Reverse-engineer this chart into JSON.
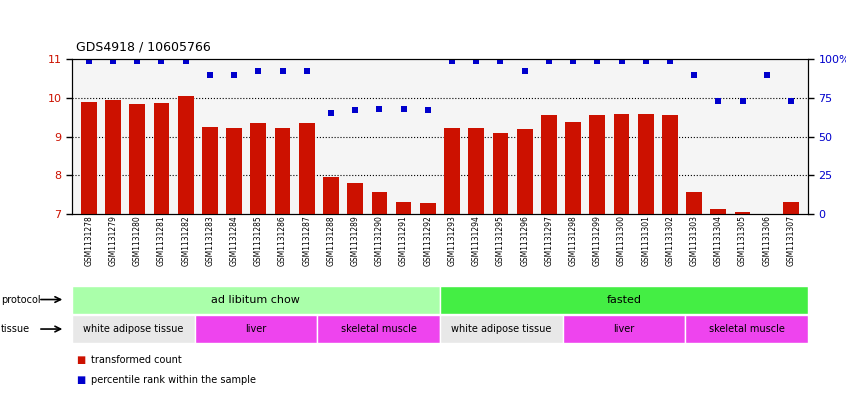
{
  "title": "GDS4918 / 10605766",
  "samples": [
    "GSM1131278",
    "GSM1131279",
    "GSM1131280",
    "GSM1131281",
    "GSM1131282",
    "GSM1131283",
    "GSM1131284",
    "GSM1131285",
    "GSM1131286",
    "GSM1131287",
    "GSM1131288",
    "GSM1131289",
    "GSM1131290",
    "GSM1131291",
    "GSM1131292",
    "GSM1131293",
    "GSM1131294",
    "GSM1131295",
    "GSM1131296",
    "GSM1131297",
    "GSM1131298",
    "GSM1131299",
    "GSM1131300",
    "GSM1131301",
    "GSM1131302",
    "GSM1131303",
    "GSM1131304",
    "GSM1131305",
    "GSM1131306",
    "GSM1131307"
  ],
  "bar_values": [
    9.88,
    9.95,
    9.83,
    9.87,
    10.05,
    9.25,
    9.22,
    9.35,
    9.22,
    9.35,
    7.95,
    7.8,
    7.58,
    7.32,
    7.28,
    9.22,
    9.22,
    9.1,
    9.2,
    9.55,
    9.38,
    9.55,
    9.57,
    9.57,
    9.55,
    7.58,
    7.12,
    7.05,
    7.0,
    7.32
  ],
  "percentile_values": [
    99,
    99,
    99,
    99,
    99,
    90,
    90,
    92,
    92,
    92,
    65,
    67,
    68,
    68,
    67,
    99,
    99,
    99,
    92,
    99,
    99,
    99,
    99,
    99,
    99,
    90,
    73,
    73,
    90,
    73
  ],
  "bar_color": "#cc1100",
  "percentile_color": "#0000cc",
  "ylim_left": [
    7,
    11
  ],
  "ylim_right": [
    0,
    100
  ],
  "yticks_left": [
    7,
    8,
    9,
    10,
    11
  ],
  "yticks_right": [
    0,
    25,
    50,
    75,
    100
  ],
  "ytick_labels_right": [
    "0",
    "25",
    "50",
    "75",
    "100%"
  ],
  "protocol_groups": [
    {
      "label": "ad libitum chow",
      "start": 0,
      "end": 14,
      "color": "#aaffaa"
    },
    {
      "label": "fasted",
      "start": 15,
      "end": 29,
      "color": "#44ee44"
    }
  ],
  "tissue_groups": [
    {
      "label": "white adipose tissue",
      "start": 0,
      "end": 4,
      "color": "#e8e8e8"
    },
    {
      "label": "liver",
      "start": 5,
      "end": 9,
      "color": "#ee66ee"
    },
    {
      "label": "skeletal muscle",
      "start": 10,
      "end": 14,
      "color": "#ee66ee"
    },
    {
      "label": "white adipose tissue",
      "start": 15,
      "end": 19,
      "color": "#e8e8e8"
    },
    {
      "label": "liver",
      "start": 20,
      "end": 24,
      "color": "#ee66ee"
    },
    {
      "label": "skeletal muscle",
      "start": 25,
      "end": 29,
      "color": "#ee66ee"
    }
  ],
  "background_color": "#ffffff",
  "chart_bg": "#f5f5f5"
}
